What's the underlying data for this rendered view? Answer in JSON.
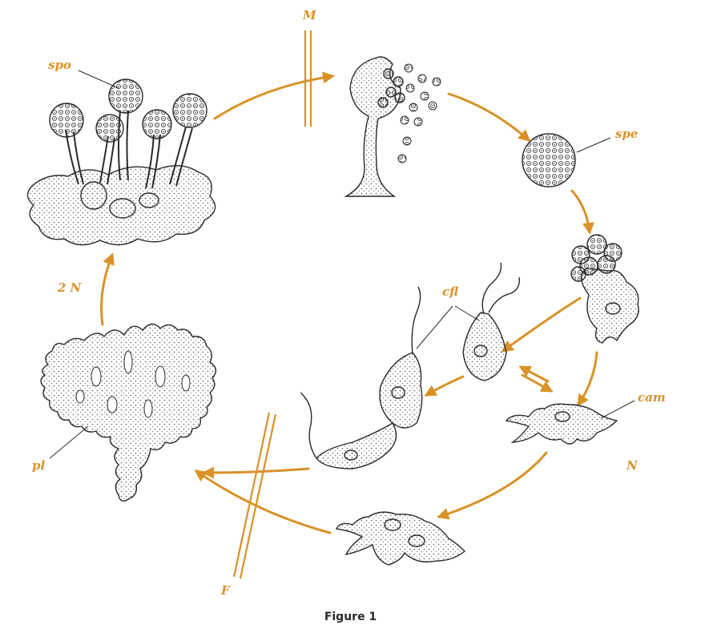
{
  "colors": {
    "accent": "#d99227",
    "ink": "#2a2a2a",
    "stipple": "#555555",
    "bg": "#ffffff"
  },
  "labels": {
    "M": "M",
    "spo": "spo",
    "spe": "spe",
    "cfl": "cfl",
    "cam": "cam",
    "N": "N",
    "F": "F",
    "pl": "pl",
    "two_n": "2 N"
  },
  "caption": "Figure 1"
}
